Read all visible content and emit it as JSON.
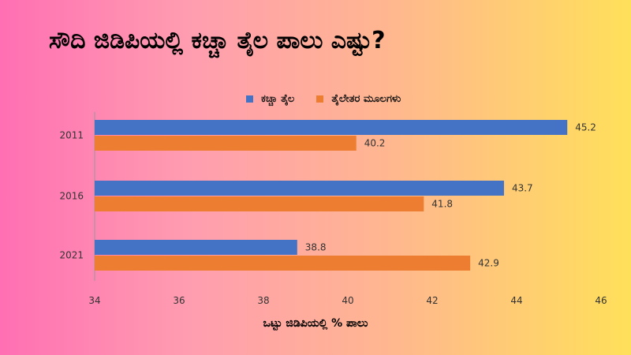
{
  "title": "ಸೌದಿ ಜಿಡಿಪಿಯಲ್ಲಿ ಕಚ್ಚಾ ತೈಲ ಪಾಲು ಎಷ್ಟು?",
  "chart_data": {
    "type": "bar",
    "orientation": "horizontal",
    "categories": [
      "2011",
      "2016",
      "2021"
    ],
    "series": [
      {
        "name": "ಕಚ್ಚಾ ತೈಲ",
        "color": "#4472c4",
        "values": [
          45.2,
          43.7,
          38.8
        ]
      },
      {
        "name": "ತೈಲೇತರ ಮೂಲಗಳು",
        "color": "#ed7d31",
        "values": [
          40.2,
          41.8,
          42.9
        ]
      }
    ],
    "xlabel": "ಒಟ್ಟು ಜಿಡಿಪಿಯಲ್ಲಿ % ಪಾಲು",
    "ylabel": "",
    "xlim": [
      34,
      46
    ],
    "xticks": [
      "34",
      "36",
      "38",
      "40",
      "42",
      "44",
      "46"
    ],
    "grid": false,
    "legend": "top"
  }
}
